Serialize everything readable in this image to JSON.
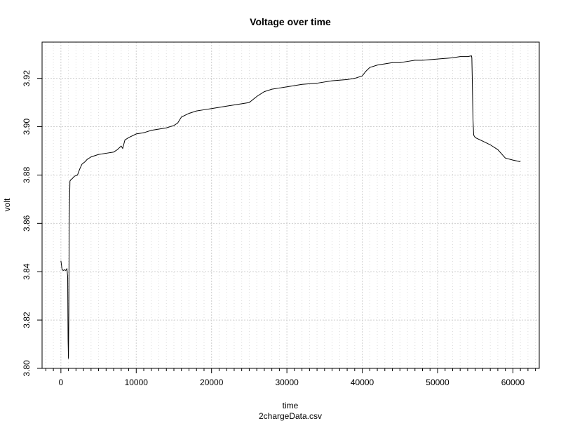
{
  "chart_data": {
    "type": "line",
    "title": "Voltage over time",
    "xlabel": "time",
    "subtitle": "2chargeData.csv",
    "ylabel": "volt",
    "xlim": [
      -2500,
      63500
    ],
    "ylim": [
      3.8,
      3.935
    ],
    "x_ticks": [
      0,
      10000,
      20000,
      30000,
      40000,
      50000,
      60000
    ],
    "x_tick_labels": [
      "0",
      "10000",
      "20000",
      "30000",
      "40000",
      "50000",
      "60000"
    ],
    "x_minor_step": 1000,
    "y_ticks": [
      3.8,
      3.82,
      3.84,
      3.86,
      3.88,
      3.9,
      3.92
    ],
    "y_tick_labels": [
      "3.80",
      "3.82",
      "3.84",
      "3.86",
      "3.88",
      "3.90",
      "3.92"
    ],
    "grid": true,
    "series": [
      {
        "color": "#000000",
        "x": [
          0,
          150,
          300,
          500,
          650,
          800,
          900,
          950,
          1000,
          1050,
          1100,
          1150,
          1200,
          1300,
          1500,
          1800,
          2200,
          2500,
          2800,
          3200,
          3500,
          4000,
          5000,
          6000,
          7000,
          7500,
          8000,
          8200,
          8500,
          9000,
          10000,
          11000,
          12000,
          13000,
          14000,
          15000,
          15500,
          16000,
          17000,
          18000,
          19000,
          20000,
          22000,
          24000,
          25000,
          26000,
          27000,
          28000,
          29000,
          30000,
          32000,
          34000,
          36000,
          38000,
          39000,
          40000,
          40500,
          41000,
          42000,
          43000,
          44000,
          45000,
          46000,
          47000,
          48000,
          50000,
          52000,
          53000,
          54000,
          54500,
          54550,
          54600,
          54700,
          54800,
          55000,
          56000,
          57000,
          58000,
          59000,
          60000,
          61000
        ],
        "y": [
          3.8445,
          3.841,
          3.8405,
          3.8408,
          3.8405,
          3.8412,
          3.838,
          3.812,
          3.804,
          3.8225,
          3.859,
          3.869,
          3.8775,
          3.878,
          3.8785,
          3.8795,
          3.88,
          3.8825,
          3.8845,
          3.8855,
          3.8865,
          3.8875,
          3.8885,
          3.889,
          3.8895,
          3.8905,
          3.892,
          3.891,
          3.8945,
          3.8955,
          3.897,
          3.8975,
          3.8985,
          3.899,
          3.8995,
          3.9005,
          3.9015,
          3.904,
          3.9055,
          3.9065,
          3.907,
          3.9075,
          3.9085,
          3.9095,
          3.91,
          3.9125,
          3.9145,
          3.9155,
          3.916,
          3.9165,
          3.9175,
          3.918,
          3.919,
          3.9195,
          3.92,
          3.921,
          3.923,
          3.9245,
          3.9255,
          3.926,
          3.9265,
          3.9265,
          3.927,
          3.9275,
          3.9275,
          3.928,
          3.9285,
          3.929,
          3.929,
          3.9293,
          3.9285,
          3.921,
          3.903,
          3.8965,
          3.8955,
          3.894,
          3.8925,
          3.8905,
          3.887,
          3.8862,
          3.8855
        ]
      }
    ]
  }
}
